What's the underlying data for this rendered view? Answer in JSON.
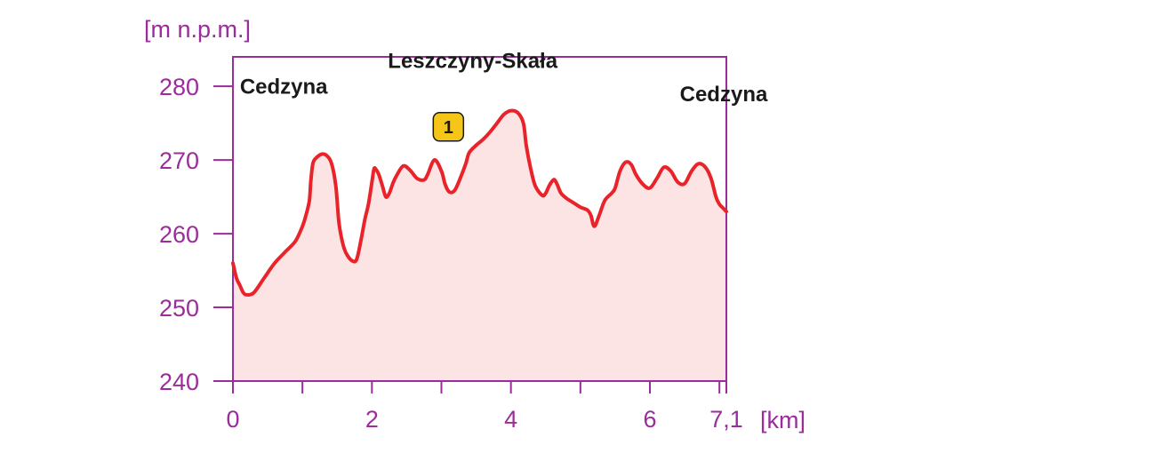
{
  "chart_data": {
    "type": "area",
    "title": "",
    "ylabel": "[m n.p.m.]",
    "xlabel": "[km]",
    "xlim": [
      0,
      7.1
    ],
    "ylim": [
      240,
      284
    ],
    "x_ticks": [
      0,
      1,
      2,
      3,
      4,
      5,
      6,
      7,
      7.1
    ],
    "x_tick_labels": [
      {
        "x": 0,
        "label": "0"
      },
      {
        "x": 2,
        "label": "2"
      },
      {
        "x": 4,
        "label": "4"
      },
      {
        "x": 6,
        "label": "6"
      },
      {
        "x": 7.1,
        "label": "7,1"
      }
    ],
    "y_ticks": [
      240,
      250,
      260,
      270,
      280
    ],
    "y_tick_labels": [
      "240",
      "250",
      "260",
      "270",
      "280"
    ],
    "grid": false,
    "series": [
      {
        "color": "#e8242a",
        "fill": "#fde4e4",
        "x": [
          0,
          0.05,
          0.1,
          0.15,
          0.2,
          0.3,
          0.45,
          0.6,
          0.75,
          0.9,
          1.0,
          1.05,
          1.1,
          1.12,
          1.15,
          1.2,
          1.28,
          1.35,
          1.42,
          1.48,
          1.52,
          1.55,
          1.6,
          1.65,
          1.72,
          1.78,
          1.84,
          1.9,
          1.95,
          2.0,
          2.03,
          2.06,
          2.1,
          2.15,
          2.2,
          2.25,
          2.3,
          2.35,
          2.45,
          2.55,
          2.65,
          2.75,
          2.8,
          2.9,
          3.0,
          3.05,
          3.1,
          3.15,
          3.2,
          3.27,
          3.35,
          3.4,
          3.5,
          3.6,
          3.7,
          3.8,
          3.9,
          4.0,
          4.1,
          4.18,
          4.22,
          4.28,
          4.35,
          4.45,
          4.5,
          4.55,
          4.6,
          4.63,
          4.67,
          4.72,
          4.8,
          4.9,
          5.0,
          5.1,
          5.15,
          5.2,
          5.27,
          5.35,
          5.45,
          5.5,
          5.57,
          5.65,
          5.73,
          5.8,
          5.9,
          6.0,
          6.1,
          6.2,
          6.3,
          6.4,
          6.5,
          6.6,
          6.7,
          6.8,
          6.88,
          6.95,
          7.0,
          7.05,
          7.1
        ],
        "y": [
          256,
          254,
          253,
          252,
          251.7,
          252,
          254,
          256,
          257.5,
          259,
          261,
          262.5,
          264.5,
          267,
          269.5,
          270.3,
          270.8,
          270.6,
          269.5,
          266.5,
          262,
          260,
          258,
          257,
          256.3,
          256.5,
          259,
          262,
          264,
          267,
          268.8,
          268.7,
          268,
          266.5,
          265,
          265.5,
          266.8,
          267.8,
          269.2,
          268.6,
          267.5,
          267.3,
          268,
          270,
          268.5,
          266.8,
          265.8,
          265.6,
          266,
          267.5,
          269.5,
          271,
          272,
          272.8,
          273.8,
          275,
          276.2,
          276.7,
          276.4,
          275,
          272,
          269,
          266.5,
          265.2,
          265.5,
          266.5,
          267.2,
          267.3,
          266.6,
          265.5,
          264.8,
          264.2,
          263.6,
          263.2,
          262.5,
          261,
          262.5,
          264.5,
          265.5,
          266.2,
          268.5,
          269.7,
          269.4,
          268,
          266.7,
          266.2,
          267.5,
          269,
          268.5,
          267,
          266.8,
          268.5,
          269.5,
          269,
          267.5,
          265,
          264,
          263.5,
          263
        ]
      }
    ],
    "annotations": [
      {
        "text": "Cedzyna",
        "x": 0.1,
        "y": 279
      },
      {
        "text": "Leszczyny-Skała",
        "x": 3.45,
        "y": 282.5
      },
      {
        "text": "Cedzyna",
        "x": 6.43,
        "y": 278
      }
    ],
    "marker": {
      "text": "1",
      "x": 3.1,
      "y": 274.5,
      "color": "#f5c518"
    }
  }
}
